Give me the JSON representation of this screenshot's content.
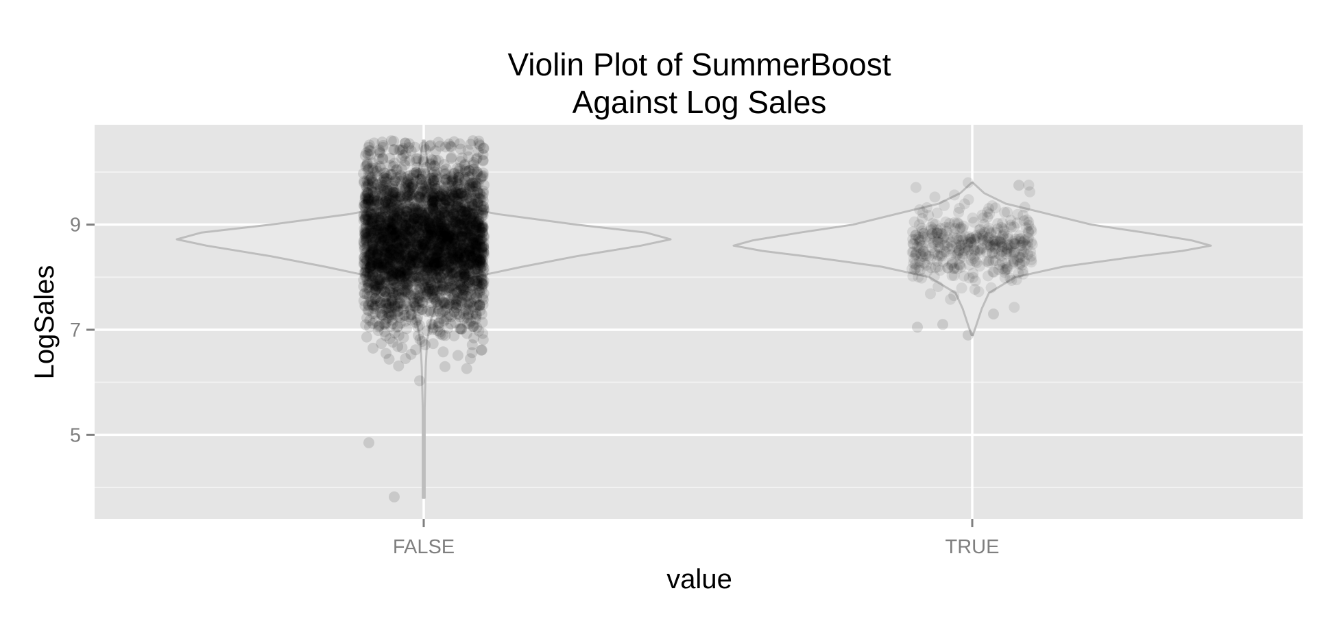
{
  "chart_data": {
    "type": "violin",
    "title_lines": [
      "Violin Plot of SummerBoost",
      "Against Log Sales"
    ],
    "xlabel": "value",
    "ylabel": "LogSales",
    "categories": [
      "FALSE",
      "TRUE"
    ],
    "yticks": [
      5,
      7,
      9
    ],
    "ylim": [
      3.4,
      10.9
    ],
    "grid": true,
    "legend": "none",
    "groups": [
      {
        "category": "FALSE",
        "min": 3.8,
        "max": 10.6,
        "center": 8.7,
        "spread": 0.78,
        "point_count": 3000,
        "outliers": [
          4.85,
          3.82,
          6.03,
          6.3,
          6.45,
          6.55
        ]
      },
      {
        "category": "TRUE",
        "min": 6.9,
        "max": 9.8,
        "center": 8.6,
        "spread": 0.38,
        "point_count": 380,
        "outliers": [
          7.05,
          7.1,
          6.9,
          7.3,
          9.75
        ]
      }
    ],
    "violin_profiles": {
      "FALSE": [
        [
          3.8,
          0.004
        ],
        [
          4.5,
          0.004
        ],
        [
          5.5,
          0.004
        ],
        [
          6.3,
          0.008
        ],
        [
          6.8,
          0.014
        ],
        [
          7.2,
          0.03
        ],
        [
          7.6,
          0.06
        ],
        [
          8.0,
          0.2
        ],
        [
          8.2,
          0.4
        ],
        [
          8.4,
          0.62
        ],
        [
          8.6,
          0.88
        ],
        [
          8.72,
          1.0
        ],
        [
          8.85,
          0.9
        ],
        [
          9.0,
          0.62
        ],
        [
          9.2,
          0.3
        ],
        [
          9.4,
          0.08
        ],
        [
          9.7,
          0.03
        ],
        [
          10.0,
          0.02
        ],
        [
          10.3,
          0.012
        ],
        [
          10.6,
          0.004
        ]
      ],
      "TRUE": [
        [
          6.9,
          0.003
        ],
        [
          7.1,
          0.018
        ],
        [
          7.4,
          0.04
        ],
        [
          7.7,
          0.07
        ],
        [
          8.0,
          0.18
        ],
        [
          8.2,
          0.38
        ],
        [
          8.4,
          0.7
        ],
        [
          8.5,
          0.88
        ],
        [
          8.6,
          1.0
        ],
        [
          8.7,
          0.92
        ],
        [
          8.85,
          0.72
        ],
        [
          9.0,
          0.5
        ],
        [
          9.2,
          0.32
        ],
        [
          9.4,
          0.14
        ],
        [
          9.6,
          0.05
        ],
        [
          9.8,
          0.002
        ]
      ]
    },
    "colors": {
      "panel": "#e5e5e5",
      "major_grid": "#ffffff",
      "minor_grid": "#f2f2f2",
      "violin_fill": "#e9e9e9",
      "violin_outline": "#bdbdbd",
      "points": "#000000",
      "tick_text": "#7f7f7f",
      "text": "#000000"
    }
  }
}
